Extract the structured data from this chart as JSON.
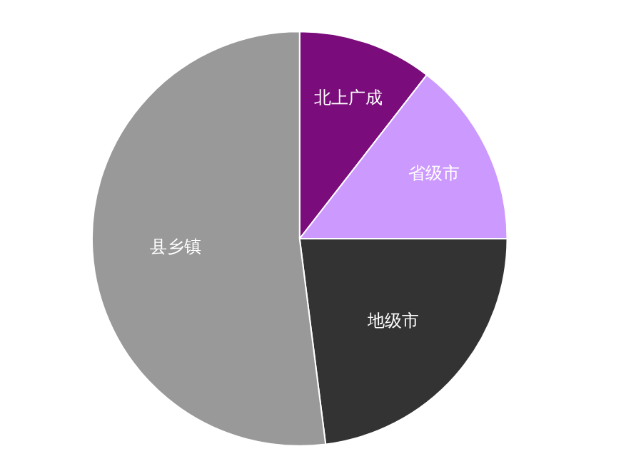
{
  "chart_data": {
    "type": "pie",
    "categories": [
      "北上广成",
      "省级市",
      "地级市",
      "县乡镇"
    ],
    "values": [
      10.5,
      14.5,
      23,
      52
    ],
    "colors": [
      "#7b0c7b",
      "#cc99ff",
      "#333333",
      "#999999"
    ],
    "legend": false
  }
}
